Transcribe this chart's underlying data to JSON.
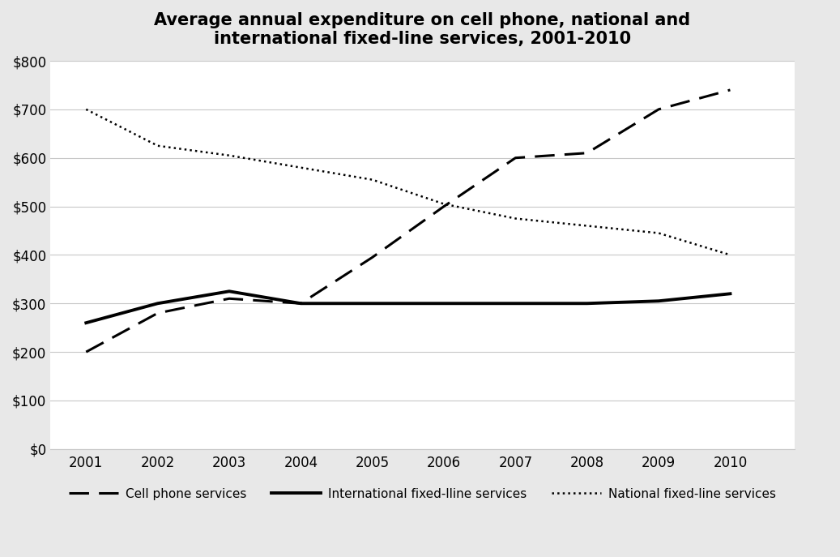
{
  "title": "Average annual expenditure on cell phone, national and\ninternational fixed-line services, 2001-2010",
  "years": [
    2001,
    2002,
    2003,
    2004,
    2005,
    2006,
    2007,
    2008,
    2009,
    2010
  ],
  "cell_phone": [
    200,
    280,
    310,
    300,
    395,
    500,
    600,
    610,
    700,
    740
  ],
  "intl_fixed": [
    260,
    300,
    325,
    300,
    300,
    300,
    300,
    300,
    305,
    320
  ],
  "natl_fixed": [
    700,
    625,
    605,
    580,
    555,
    505,
    475,
    460,
    445,
    400
  ],
  "ylim": [
    0,
    800
  ],
  "yticks": [
    0,
    100,
    200,
    300,
    400,
    500,
    600,
    700,
    800
  ],
  "ytick_labels": [
    "$0",
    "$100",
    "$200",
    "$300",
    "$400",
    "$500",
    "$600",
    "$700",
    "$800"
  ],
  "background_color": "#e8e8e8",
  "plot_bg_color": "#ffffff",
  "legend_cell": "Cell phone services",
  "legend_intl": "International fixed-lline services",
  "legend_natl": "National fixed-line services",
  "title_fontsize": 15,
  "tick_fontsize": 12,
  "legend_fontsize": 11
}
